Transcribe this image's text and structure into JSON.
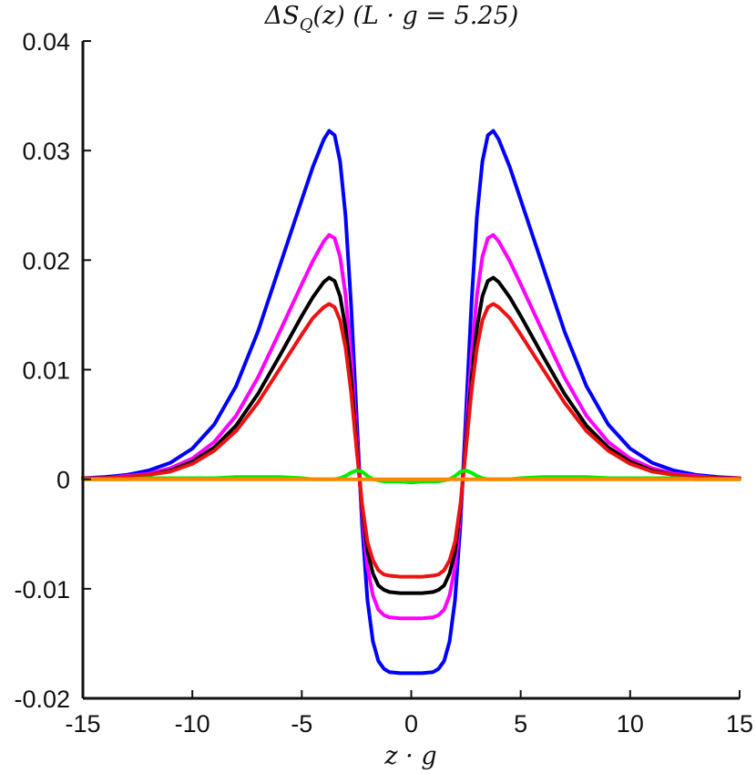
{
  "chart_data": {
    "type": "line",
    "title": "ΔS_Q(z) (L · g = 5.25)",
    "title_display": "ΔS",
    "title_subscript": "Q",
    "title_rest": "(z) (L · g = 5.25)",
    "xlabel": "z · g",
    "ylabel": "",
    "xlim": [
      -15,
      15
    ],
    "ylim": [
      -0.02,
      0.04
    ],
    "xticks": [
      -15,
      -10,
      -5,
      0,
      5,
      10,
      15
    ],
    "xtick_labels": [
      "-15",
      "-10",
      "-5",
      "0",
      "5",
      "10",
      "15"
    ],
    "yticks": [
      -0.02,
      -0.01,
      0,
      0.01,
      0.02,
      0.03,
      0.04
    ],
    "ytick_labels": [
      "-0.02",
      "-0.01",
      "0",
      "0.01",
      "0.02",
      "0.03",
      "0.04"
    ],
    "grid": false,
    "legend": "none",
    "x": [
      -15,
      -14,
      -13,
      -12,
      -11,
      -10,
      -9,
      -8,
      -7,
      -6,
      -5,
      -4.5,
      -4,
      -3.75,
      -3.5,
      -3.25,
      -3,
      -2.75,
      -2.5,
      -2.25,
      -2,
      -1.75,
      -1.5,
      -1.25,
      -1,
      -0.5,
      0,
      0.5,
      1,
      1.25,
      1.5,
      1.75,
      2,
      2.25,
      2.5,
      2.75,
      3,
      3.25,
      3.5,
      3.75,
      4,
      4.5,
      5,
      6,
      7,
      8,
      9,
      10,
      11,
      12,
      13,
      14,
      15
    ],
    "series": [
      {
        "color": "#0000ff",
        "values": [
          0.0001,
          0.0002,
          0.0004,
          0.0008,
          0.0015,
          0.0028,
          0.005,
          0.0085,
          0.0135,
          0.0195,
          0.0255,
          0.0285,
          0.031,
          0.0318,
          0.0314,
          0.029,
          0.024,
          0.016,
          0.006,
          -0.004,
          -0.011,
          -0.0148,
          -0.0166,
          -0.0173,
          -0.0176,
          -0.0177,
          -0.0177,
          -0.0177,
          -0.0176,
          -0.0173,
          -0.0166,
          -0.0148,
          -0.011,
          -0.004,
          0.006,
          0.016,
          0.024,
          0.029,
          0.0314,
          0.0318,
          0.031,
          0.0285,
          0.0255,
          0.0195,
          0.0135,
          0.0085,
          0.005,
          0.0028,
          0.0015,
          0.0008,
          0.0004,
          0.0002,
          0.0001
        ]
      },
      {
        "color": "#ff00ff",
        "values": [
          0.0001,
          0.0001,
          0.0003,
          0.0005,
          0.001,
          0.0019,
          0.0034,
          0.0058,
          0.0093,
          0.0135,
          0.0178,
          0.0199,
          0.0217,
          0.0223,
          0.022,
          0.0203,
          0.0168,
          0.0112,
          0.004,
          -0.003,
          -0.008,
          -0.0106,
          -0.0119,
          -0.0124,
          -0.0126,
          -0.0127,
          -0.0127,
          -0.0127,
          -0.0126,
          -0.0124,
          -0.0119,
          -0.0106,
          -0.008,
          -0.003,
          0.004,
          0.0112,
          0.0168,
          0.0203,
          0.022,
          0.0223,
          0.0217,
          0.0199,
          0.0178,
          0.0135,
          0.0093,
          0.0058,
          0.0034,
          0.0019,
          0.001,
          0.0005,
          0.0003,
          0.0001,
          0.0001
        ]
      },
      {
        "color": "#000000",
        "values": [
          0.0001,
          0.0001,
          0.0002,
          0.0004,
          0.0008,
          0.0016,
          0.0029,
          0.0049,
          0.0078,
          0.0113,
          0.0149,
          0.0166,
          0.018,
          0.0184,
          0.0181,
          0.0167,
          0.0138,
          0.0092,
          0.0033,
          -0.0025,
          -0.0066,
          -0.0086,
          -0.0097,
          -0.0101,
          -0.0103,
          -0.0104,
          -0.0104,
          -0.0104,
          -0.0103,
          -0.0101,
          -0.0097,
          -0.0086,
          -0.0066,
          -0.0025,
          0.0033,
          0.0092,
          0.0138,
          0.0167,
          0.0181,
          0.0184,
          0.018,
          0.0166,
          0.0149,
          0.0113,
          0.0078,
          0.0049,
          0.0029,
          0.0016,
          0.0008,
          0.0004,
          0.0002,
          0.0001,
          0.0001
        ]
      },
      {
        "color": "#ee1111",
        "values": [
          0.0001,
          0.0001,
          0.0002,
          0.0004,
          0.0007,
          0.0014,
          0.0026,
          0.0044,
          0.007,
          0.0101,
          0.0132,
          0.0147,
          0.0157,
          0.016,
          0.0157,
          0.0145,
          0.012,
          0.008,
          0.0028,
          -0.0022,
          -0.0057,
          -0.0074,
          -0.0083,
          -0.0087,
          -0.0088,
          -0.0089,
          -0.0089,
          -0.0089,
          -0.0088,
          -0.0087,
          -0.0083,
          -0.0074,
          -0.0057,
          -0.0022,
          0.0028,
          0.008,
          0.012,
          0.0145,
          0.0157,
          0.016,
          0.0157,
          0.0147,
          0.0132,
          0.0101,
          0.007,
          0.0044,
          0.0026,
          0.0014,
          0.0007,
          0.0004,
          0.0002,
          0.0001,
          0.0001
        ]
      },
      {
        "color": "#00ee00",
        "values": [
          0.0,
          0.0,
          0.0,
          0.0001,
          0.0001,
          0.0001,
          0.0001,
          0.0002,
          0.0002,
          0.0002,
          0.0001,
          0.0,
          0.0,
          0.0,
          0.0,
          0.0001,
          0.0003,
          0.0006,
          0.0008,
          0.0007,
          0.0003,
          0.0,
          -0.0001,
          -0.0002,
          -0.0002,
          -0.0002,
          -0.0003,
          -0.0002,
          -0.0002,
          -0.0002,
          -0.0001,
          0.0,
          0.0003,
          0.0007,
          0.0008,
          0.0006,
          0.0003,
          0.0001,
          0.0,
          0.0,
          0.0,
          0.0,
          0.0001,
          0.0002,
          0.0002,
          0.0002,
          0.0001,
          0.0001,
          0.0001,
          0.0001,
          0.0,
          0.0,
          0.0
        ]
      },
      {
        "color": "#ff8800",
        "values": [
          0,
          0,
          0,
          0,
          0,
          0,
          0,
          0,
          0,
          0,
          0,
          0,
          0,
          0,
          0,
          0,
          0,
          0,
          0,
          0,
          0,
          0,
          0,
          0,
          0,
          0,
          0,
          0,
          0,
          0,
          0,
          0,
          0,
          0,
          0,
          0,
          0,
          0,
          0,
          0,
          0,
          0,
          0,
          0,
          0,
          0,
          0,
          0,
          0,
          0,
          0,
          0,
          0
        ]
      }
    ]
  }
}
